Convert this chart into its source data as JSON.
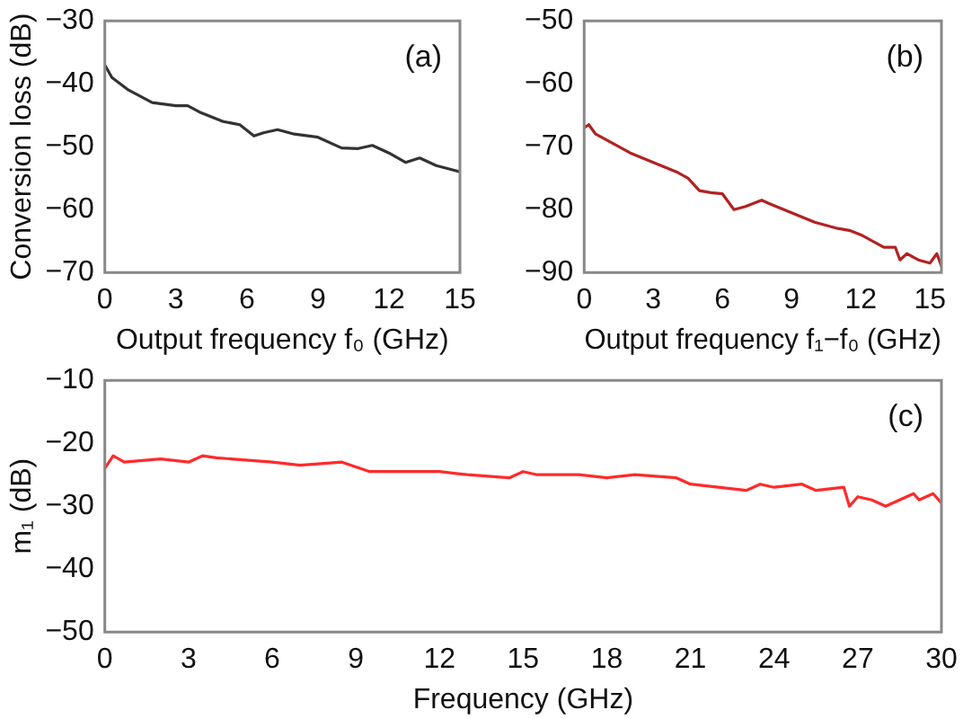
{
  "chart_data": [
    {
      "type": "line",
      "xlabel": "Output frequency f₀ (GHz)",
      "ylabel": "Conversion loss (dB)",
      "annotations": [
        "(a)"
      ],
      "xlim": [
        0,
        15
      ],
      "xticks": [
        0,
        3,
        6,
        9,
        12,
        15
      ],
      "ylim": [
        -70,
        -30
      ],
      "yticks": [
        -70,
        -60,
        -50,
        -40,
        -30
      ],
      "grid": false,
      "legend": false,
      "marker": "none",
      "line_style": "solid",
      "series": [
        {
          "color": "#333333",
          "x": [
            0,
            0.3,
            1,
            2,
            3,
            3.5,
            4,
            5,
            5.7,
            6.3,
            6.7,
            7.3,
            8,
            9,
            10,
            10.7,
            11.3,
            12,
            12.7,
            13.3,
            14,
            15
          ],
          "values": [
            -37,
            -39,
            -41,
            -43,
            -43.5,
            -43.5,
            -44.5,
            -46,
            -46.5,
            -48.3,
            -47.8,
            -47.3,
            -48,
            -48.5,
            -50.2,
            -50.3,
            -49.8,
            -51,
            -52.5,
            -51.8,
            -53,
            -54
          ]
        }
      ]
    },
    {
      "type": "line",
      "xlabel": "Output frequency f₁−f₀ (GHz)",
      "annotations": [
        "(b)"
      ],
      "xlim": [
        0,
        15.5
      ],
      "xticks": [
        0,
        3,
        6,
        9,
        12,
        15
      ],
      "ylim": [
        -90,
        -50
      ],
      "yticks": [
        -90,
        -80,
        -70,
        -60,
        -50
      ],
      "grid": false,
      "legend": false,
      "marker": "none",
      "line_style": "solid",
      "series": [
        {
          "color": "#b22222",
          "x": [
            0,
            0.2,
            0.5,
            1,
            2,
            3,
            4,
            4.5,
            5,
            5.5,
            6,
            6.5,
            7,
            7.7,
            8,
            9,
            10,
            11,
            11.5,
            12,
            12.5,
            13,
            13.5,
            13.7,
            14,
            14.5,
            15,
            15.3,
            15.5
          ],
          "values": [
            -67,
            -66.5,
            -68,
            -69,
            -71,
            -72.5,
            -74,
            -75,
            -77,
            -77.3,
            -77.5,
            -80,
            -79.5,
            -78.5,
            -79,
            -80.5,
            -82,
            -83,
            -83.3,
            -84,
            -85,
            -86,
            -86,
            -88,
            -87,
            -88,
            -88.5,
            -87,
            -89
          ]
        }
      ]
    },
    {
      "type": "line",
      "xlabel": "Frequency (GHz)",
      "ylabel": "m₁ (dB)",
      "annotations": [
        "(c)"
      ],
      "xlim": [
        0,
        30
      ],
      "xticks": [
        0,
        3,
        6,
        9,
        12,
        15,
        18,
        21,
        24,
        27,
        30
      ],
      "ylim": [
        -50,
        -10
      ],
      "yticks": [
        -50,
        -40,
        -30,
        -20,
        -10
      ],
      "grid": false,
      "legend": false,
      "marker": "none",
      "line_style": "solid",
      "series": [
        {
          "color": "#ff2a2a",
          "x": [
            0,
            0.3,
            0.7,
            2,
            3,
            3.5,
            4,
            6,
            7,
            8.5,
            9.5,
            12,
            13,
            14.5,
            15,
            15.5,
            17,
            18,
            19,
            20.5,
            21,
            22,
            23,
            23.5,
            24,
            25,
            25.5,
            26.5,
            26.7,
            27,
            27.5,
            28,
            28.5,
            29,
            29.2,
            29.7,
            30
          ],
          "values": [
            -24,
            -22,
            -23,
            -22.5,
            -23,
            -22,
            -22.3,
            -23,
            -23.5,
            -23,
            -24.5,
            -24.5,
            -25,
            -25.5,
            -24.5,
            -25,
            -25,
            -25.5,
            -25,
            -25.5,
            -26.5,
            -27,
            -27.5,
            -26.5,
            -27,
            -26.5,
            -27.5,
            -27,
            -30,
            -28.5,
            -29,
            -30,
            -29,
            -28,
            -29,
            -28,
            -29.5
          ]
        }
      ]
    }
  ]
}
